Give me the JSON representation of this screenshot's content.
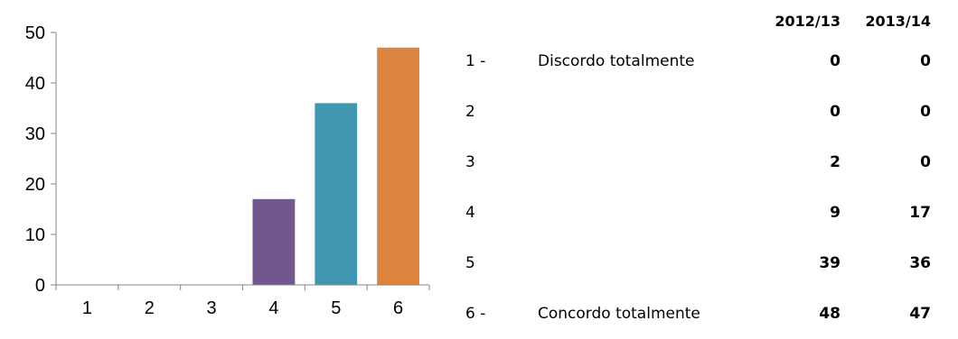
{
  "chart_data": {
    "type": "bar",
    "categories": [
      "1",
      "2",
      "3",
      "4",
      "5",
      "6"
    ],
    "values": [
      0,
      0,
      0,
      17,
      36,
      47
    ],
    "colors": [
      "#4f81bd",
      "#4f81bd",
      "#4f81bd",
      "#72578f",
      "#4197b0",
      "#dd843e"
    ],
    "ylim": [
      0,
      50
    ],
    "yticks": [
      0,
      10,
      20,
      30,
      40,
      50
    ],
    "grid": false,
    "title": "",
    "xlabel": "",
    "ylabel": ""
  },
  "table": {
    "headers": [
      "",
      "",
      "2012/13",
      "2013/14"
    ],
    "rows": [
      {
        "num": "1 -",
        "desc": "Discordo totalmente",
        "y1": "0",
        "y2": "0"
      },
      {
        "num": "2",
        "desc": "",
        "y1": "0",
        "y2": "0"
      },
      {
        "num": "3",
        "desc": "",
        "y1": "2",
        "y2": "0"
      },
      {
        "num": "4",
        "desc": "",
        "y1": "9",
        "y2": "17"
      },
      {
        "num": "5",
        "desc": "",
        "y1": "39",
        "y2": "36"
      },
      {
        "num": "6 -",
        "desc": "Concordo totalmente",
        "y1": "48",
        "y2": "47"
      }
    ]
  }
}
